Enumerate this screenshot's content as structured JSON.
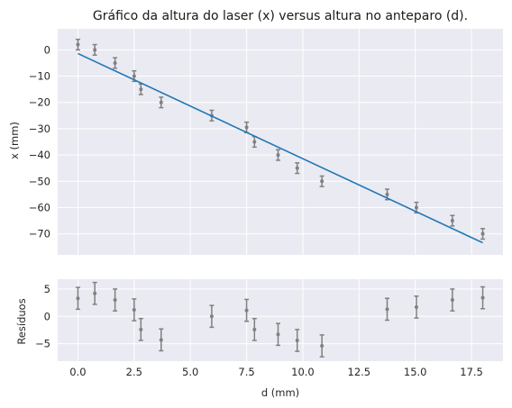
{
  "chart_data": [
    {
      "type": "scatter",
      "title": "Gráfico da altura do laser (x) versus altura no anteparo (d).",
      "xlabel": "",
      "ylabel": "x (mm)",
      "xlim": [
        -0.9,
        18.9
      ],
      "ylim": [
        -78,
        8
      ],
      "yticks": [
        0,
        -10,
        -20,
        -30,
        -40,
        -50,
        -60,
        -70
      ],
      "xgrid": [
        0,
        2.5,
        5.0,
        7.5,
        10.0,
        12.5,
        15.0,
        17.5
      ],
      "grid": true,
      "background": "#eaeaf2",
      "series": [
        {
          "kind": "errorbar",
          "color": "#808080",
          "x": [
            0,
            0.75,
            1.65,
            2.5,
            2.8,
            3.7,
            5.95,
            7.5,
            7.85,
            8.9,
            9.75,
            10.85,
            13.75,
            15.05,
            16.65,
            18.0
          ],
          "y": [
            2,
            0,
            -5,
            -10,
            -15,
            -20,
            -25,
            -29.5,
            -35,
            -40,
            -45,
            -50,
            -55,
            -60,
            -65,
            -70
          ],
          "yerr": 2
        },
        {
          "kind": "line",
          "color": "#1f77b4",
          "x": [
            0,
            18.0
          ],
          "y": [
            -1.4,
            -73.4
          ]
        }
      ]
    },
    {
      "type": "scatter",
      "title": "",
      "xlabel": "d (mm)",
      "ylabel": "Resíduos",
      "xlim": [
        -0.9,
        18.9
      ],
      "ylim": [
        -8.2,
        6.8
      ],
      "yticks": [
        5,
        0,
        -5
      ],
      "xticks": [
        0.0,
        2.5,
        5.0,
        7.5,
        10.0,
        12.5,
        15.0,
        17.5
      ],
      "xticklabels": [
        "0.0",
        "2.5",
        "5.0",
        "7.5",
        "10.0",
        "12.5",
        "15.0",
        "17.5"
      ],
      "grid": true,
      "background": "#eaeaf2",
      "series": [
        {
          "kind": "errorbar",
          "color": "#808080",
          "x": [
            0,
            0.75,
            1.65,
            2.5,
            2.8,
            3.7,
            5.95,
            7.5,
            7.85,
            8.9,
            9.75,
            10.85,
            13.75,
            15.05,
            16.65,
            18.0
          ],
          "y": [
            3.3,
            4.2,
            3.0,
            1.2,
            -2.4,
            -4.3,
            0.0,
            1.1,
            -2.4,
            -3.3,
            -4.4,
            -5.4,
            1.3,
            1.7,
            3.0,
            3.4
          ],
          "yerr": 2
        }
      ]
    }
  ]
}
